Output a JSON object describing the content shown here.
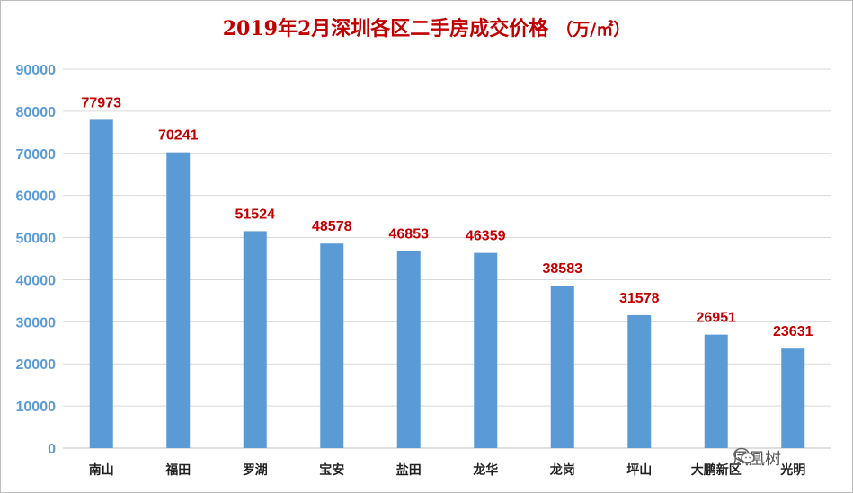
{
  "chart_data": {
    "type": "bar",
    "title": "2019年2月深圳各区二手房成交价格",
    "unit": "（万/㎡）",
    "categories": [
      "南山",
      "福田",
      "罗湖",
      "宝安",
      "盐田",
      "龙华",
      "龙岗",
      "坪山",
      "大鹏新区",
      "光明"
    ],
    "values": [
      77973,
      70241,
      51524,
      48578,
      46853,
      46359,
      38583,
      31578,
      26951,
      23631
    ],
    "ylim": [
      0,
      90000
    ],
    "yticks": [
      0,
      10000,
      20000,
      30000,
      40000,
      50000,
      60000,
      70000,
      80000,
      90000
    ],
    "grid": true,
    "bar_color": "#5b9bd5",
    "label_color": "#c00000",
    "title_color": "#c00000"
  },
  "watermark": {
    "text": "凤凰树",
    "icon": "wechat-icon"
  }
}
